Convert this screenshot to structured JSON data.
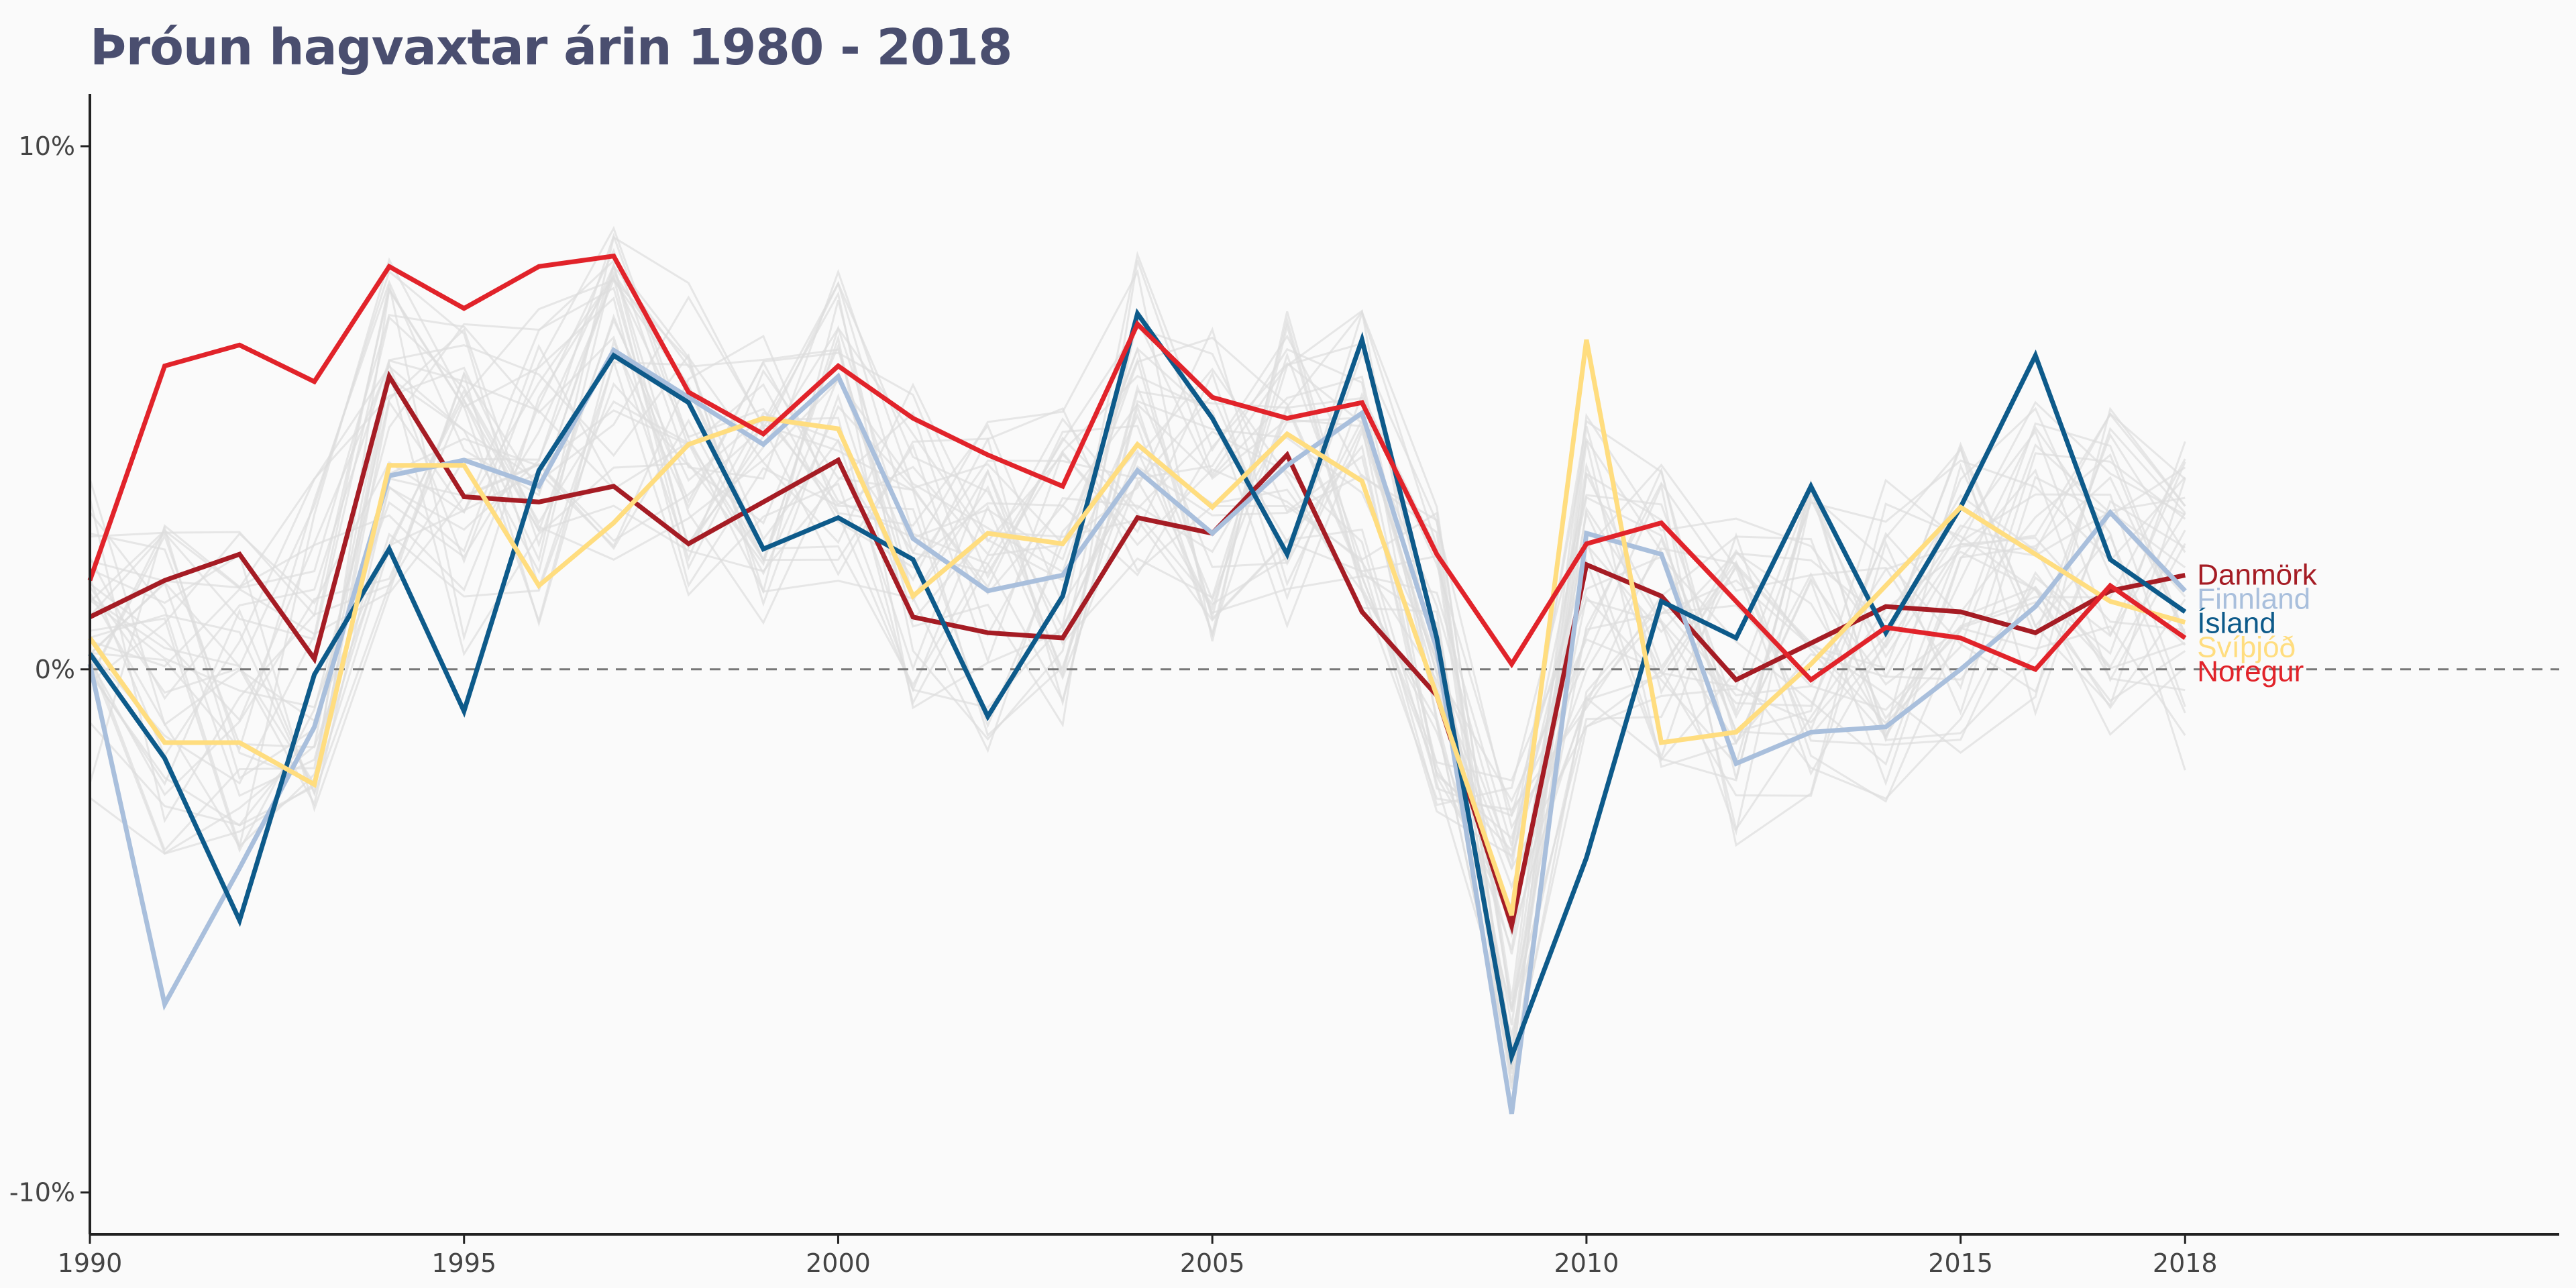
{
  "chart_data": {
    "type": "line",
    "title": "Þróun hagvaxtar árin 1980 - 2018",
    "xlabel": "",
    "ylabel": "",
    "xlim": [
      1990,
      2023
    ],
    "ylim": [
      -10.8,
      11
    ],
    "x_ticks": [
      1990,
      1995,
      2000,
      2005,
      2010,
      2015,
      2018
    ],
    "y_ticks": [
      {
        "value": 10,
        "label": "10%"
      },
      {
        "value": 0,
        "label": "0%"
      },
      {
        "value": -10,
        "label": "-10%"
      }
    ],
    "reference_line": {
      "value": 0,
      "style": "dashed"
    },
    "grid": false,
    "legend": "direct labels at line ends",
    "x": [
      1990,
      1991,
      1992,
      1993,
      1994,
      1995,
      1996,
      1997,
      1998,
      1999,
      2000,
      2001,
      2002,
      2003,
      2004,
      2005,
      2006,
      2007,
      2008,
      2009,
      2010,
      2011,
      2012,
      2013,
      2014,
      2015,
      2016,
      2017,
      2018
    ],
    "series": [
      {
        "name": "Danmörk",
        "color": "#a51c24",
        "values": [
          1.0,
          1.7,
          2.2,
          0.2,
          5.6,
          3.3,
          3.2,
          3.5,
          2.4,
          3.2,
          4.0,
          1.0,
          0.7,
          0.6,
          2.9,
          2.6,
          4.1,
          1.1,
          -0.5,
          -4.9,
          2.0,
          1.4,
          -0.2,
          0.5,
          1.2,
          1.1,
          0.7,
          1.5,
          1.8
        ]
      },
      {
        "name": "Finnland",
        "color": "#a9bfdc",
        "values": [
          0.1,
          -6.4,
          -3.8,
          -1.1,
          3.7,
          4.0,
          3.5,
          6.1,
          5.2,
          4.3,
          5.6,
          2.5,
          1.5,
          1.8,
          3.8,
          2.6,
          3.9,
          4.9,
          0.4,
          -8.5,
          2.6,
          2.2,
          -1.8,
          -1.2,
          -1.1,
          0.0,
          1.2,
          3.0,
          1.5
        ]
      },
      {
        "name": "Ísland",
        "color": "#0d5a8a",
        "values": [
          0.3,
          -1.7,
          -4.8,
          -0.1,
          2.3,
          -0.8,
          3.8,
          6.0,
          5.1,
          2.3,
          2.9,
          2.1,
          -0.9,
          1.4,
          6.8,
          4.8,
          2.2,
          6.3,
          0.6,
          -7.4,
          -3.6,
          1.3,
          0.6,
          3.5,
          0.7,
          3.1,
          6.0,
          2.1,
          1.1
        ]
      },
      {
        "name": "Svíþjóð",
        "color": "#ffdd7f",
        "values": [
          0.6,
          -1.4,
          -1.4,
          -2.2,
          3.9,
          3.9,
          1.6,
          2.8,
          4.3,
          4.8,
          4.6,
          1.4,
          2.6,
          2.4,
          4.3,
          3.1,
          4.5,
          3.6,
          -0.5,
          -4.7,
          6.3,
          -1.4,
          -1.2,
          0.1,
          1.6,
          3.1,
          2.2,
          1.3,
          0.9
        ]
      },
      {
        "name": "Noregur",
        "color": "#e1232a",
        "values": [
          1.7,
          5.8,
          6.2,
          5.5,
          7.7,
          6.9,
          7.7,
          7.9,
          5.3,
          4.5,
          5.8,
          4.8,
          4.1,
          3.5,
          6.6,
          5.2,
          4.8,
          5.1,
          2.2,
          0.1,
          2.4,
          2.8,
          1.3,
          -0.2,
          0.8,
          0.6,
          0.0,
          1.6,
          0.6
        ]
      }
    ],
    "background_series_color": "#dddddd"
  }
}
